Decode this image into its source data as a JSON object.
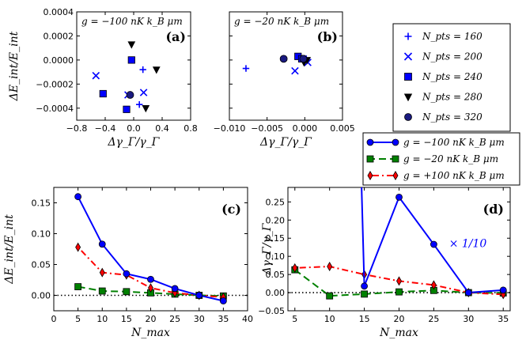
{
  "chart_data": [
    {
      "type": "scatter",
      "id": "a",
      "panel_label": "(a)",
      "annotation": "g = −100 nK k_B μm",
      "xlabel": "Δγ_Γ/γ_Γ",
      "ylabel": "ΔE_int/E_int",
      "xlim": [
        -0.8,
        0.8
      ],
      "ylim": [
        -0.0005,
        0.0004
      ],
      "xticks": [
        -0.8,
        -0.4,
        0.0,
        0.4,
        0.8
      ],
      "xtick_labels": [
        "−0.8",
        "−0.4",
        "0.0",
        "0.4",
        "0.8"
      ],
      "yticks": [
        -0.0004,
        -0.0002,
        0.0,
        0.0002,
        0.0004
      ],
      "ytick_labels": [
        "−0.0004",
        "−0.0002",
        "0.0000",
        "0.0002",
        "0.0004"
      ],
      "series": [
        {
          "name": "N_pts = 160",
          "marker": "plus",
          "points": [
            [
              0.13,
              -8e-05
            ],
            [
              0.08,
              -0.00037
            ]
          ]
        },
        {
          "name": "N_pts = 200",
          "marker": "x",
          "points": [
            [
              -0.53,
              -0.00013
            ],
            [
              0.14,
              -0.00027
            ],
            [
              -0.08,
              -0.00029
            ]
          ]
        },
        {
          "name": "N_pts = 240",
          "marker": "square",
          "points": [
            [
              -0.43,
              -0.00028
            ],
            [
              -0.03,
              0.0
            ],
            [
              -0.1,
              -0.00041
            ]
          ]
        },
        {
          "name": "N_pts = 280",
          "marker": "triangle-down",
          "points": [
            [
              -0.03,
              0.00013
            ],
            [
              0.32,
              -8e-05
            ],
            [
              0.17,
              -0.0004
            ]
          ]
        },
        {
          "name": "N_pts = 320",
          "marker": "circle",
          "points": [
            [
              -0.05,
              -0.00029
            ]
          ]
        }
      ]
    },
    {
      "type": "scatter",
      "id": "b",
      "panel_label": "(b)",
      "annotation": "g = −20 nK k_B μm",
      "xlabel": "Δγ_Γ/γ_Γ",
      "ylabel": "",
      "xlim": [
        -0.01,
        0.005
      ],
      "ylim": [
        -0.0005,
        0.0004
      ],
      "xticks": [
        -0.01,
        -0.005,
        0.0,
        0.005
      ],
      "xtick_labels": [
        "−0.010",
        "−0.005",
        "0.000",
        "0.005"
      ],
      "yticks": [],
      "ytick_labels": [],
      "series": [
        {
          "name": "N_pts = 160",
          "marker": "plus",
          "points": [
            [
              -0.0078,
              -7e-05
            ],
            [
              0.0002,
              1e-05
            ]
          ]
        },
        {
          "name": "N_pts = 200",
          "marker": "x",
          "points": [
            [
              -0.0013,
              -9e-05
            ],
            [
              0.0004,
              -2e-05
            ]
          ]
        },
        {
          "name": "N_pts = 240",
          "marker": "square",
          "points": [
            [
              -0.0009,
              3e-05
            ],
            [
              -0.0004,
              1e-05
            ]
          ]
        },
        {
          "name": "N_pts = 280",
          "marker": "triangle-down",
          "points": [
            [
              -0.0001,
              -2e-05
            ],
            [
              0.0003,
              0.0
            ]
          ]
        },
        {
          "name": "N_pts = 320",
          "marker": "circle",
          "points": [
            [
              -0.0028,
              1e-05
            ],
            [
              -0.0002,
              1e-05
            ]
          ]
        }
      ]
    },
    {
      "type": "line",
      "id": "c",
      "panel_label": "(c)",
      "xlabel": "N_max",
      "ylabel": "ΔE_int/E_int",
      "xlim": [
        0,
        40
      ],
      "ylim": [
        -0.025,
        0.175
      ],
      "xticks": [
        0,
        5,
        10,
        15,
        20,
        25,
        30,
        35,
        40
      ],
      "xtick_labels": [
        "0",
        "5",
        "10",
        "15",
        "20",
        "25",
        "30",
        "35",
        "40"
      ],
      "yticks": [
        0.0,
        0.05,
        0.1,
        0.15
      ],
      "ytick_labels": [
        "0.00",
        "0.05",
        "0.10",
        "0.15"
      ],
      "x": [
        5,
        10,
        15,
        20,
        25,
        30,
        35
      ],
      "series": [
        {
          "name": "g = −100 nK k_B μm",
          "values": [
            0.16,
            0.083,
            0.035,
            0.026,
            0.011,
            0.0,
            -0.009
          ]
        },
        {
          "name": "g = −20 nK k_B μm",
          "values": [
            0.014,
            0.007,
            0.006,
            0.004,
            0.002,
            0.0,
            -0.001
          ]
        },
        {
          "name": "g = +100 nK k_B μm",
          "values": [
            0.078,
            0.037,
            0.033,
            0.012,
            0.004,
            0.0,
            -0.003
          ]
        }
      ]
    },
    {
      "type": "line",
      "id": "d",
      "panel_label": "(d)",
      "xlabel": "N_max",
      "ylabel": "Δγ_Γ/γ_Γ",
      "xlim": [
        4,
        36
      ],
      "ylim": [
        -0.05,
        0.29
      ],
      "xticks": [
        5,
        10,
        15,
        20,
        25,
        30,
        35
      ],
      "xtick_labels": [
        "5",
        "10",
        "15",
        "20",
        "25",
        "30",
        "35"
      ],
      "yticks": [
        -0.05,
        0.0,
        0.05,
        0.1,
        0.15,
        0.2,
        0.25
      ],
      "ytick_labels": [
        "−0.05",
        "0.00",
        "0.05",
        "0.10",
        "0.15",
        "0.20",
        "0.25"
      ],
      "scale_note": "× 1/10",
      "x": [
        5,
        10,
        15,
        20,
        25,
        30,
        35
      ],
      "series": [
        {
          "name": "g = −100 nK k_B μm",
          "values": [
            null,
            null,
            0.018,
            0.263,
            0.133,
            0.0,
            0.007
          ],
          "x0_offscale": 14.6
        },
        {
          "name": "g = −20 nK k_B μm",
          "values": [
            0.063,
            -0.009,
            -0.004,
            0.002,
            0.006,
            0.0,
            -0.001
          ]
        },
        {
          "name": "g = +100 nK k_B μm",
          "values": [
            0.068,
            0.072,
            0.05,
            0.032,
            0.021,
            0.0,
            -0.005
          ]
        }
      ]
    }
  ],
  "legend_top": {
    "entries": [
      "N_pts = 160",
      "N_pts = 200",
      "N_pts = 240",
      "N_pts = 280",
      "N_pts = 320"
    ]
  },
  "legend_bottom": {
    "entries": [
      "g = −100 nK k_B μm",
      "g = −20 nK k_B μm",
      "g = +100 nK k_B μm"
    ]
  },
  "colors": {
    "blue": "#0000ff",
    "green": "#008000",
    "red": "#ff0000",
    "black": "#000000"
  }
}
